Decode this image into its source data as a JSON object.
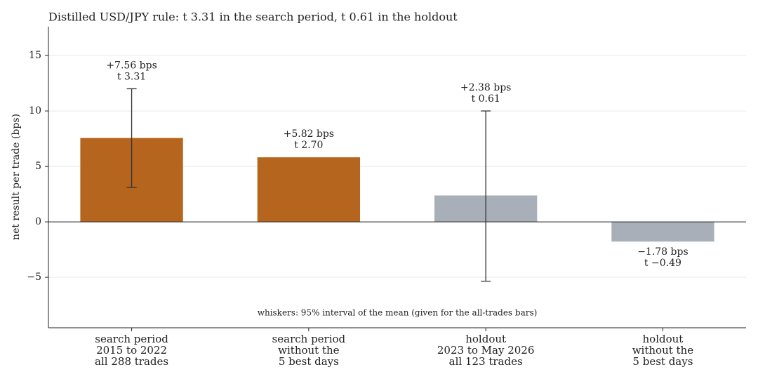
{
  "chart_data": {
    "type": "bar",
    "title": "Distilled USD/JPY rule: t 3.31 in the search period, t 0.61 in the holdout",
    "ylabel": "net result per trade (bps)",
    "categories": [
      [
        "search period",
        "2015 to 2022",
        "all 288 trades"
      ],
      [
        "search period",
        "without the",
        "5 best days"
      ],
      [
        "holdout",
        "2023 to May 2026",
        "all 123 trades"
      ],
      [
        "holdout",
        "without the",
        "5 best days"
      ]
    ],
    "values": [
      7.56,
      5.82,
      2.38,
      -1.78
    ],
    "value_labels": [
      "+7.56 bps",
      "+5.82 bps",
      "+2.38 bps",
      "−1.78 bps"
    ],
    "t_labels": [
      "t 3.31",
      "t 2.70",
      "t 0.61",
      "t −0.49"
    ],
    "error_low": [
      3.1,
      null,
      -5.35,
      null
    ],
    "error_high": [
      12.0,
      null,
      10.0,
      null
    ],
    "colors": [
      "#b5651d",
      "#b5651d",
      "#a9afb8",
      "#a9afb8"
    ],
    "ylim": [
      -9.55,
      17.6
    ],
    "yticks": [
      {
        "value": -5,
        "label": "−5"
      },
      0,
      5,
      10,
      15
    ],
    "grid": true,
    "annotation": "whiskers: 95% interval of the mean (given for the all-trades bars)"
  }
}
